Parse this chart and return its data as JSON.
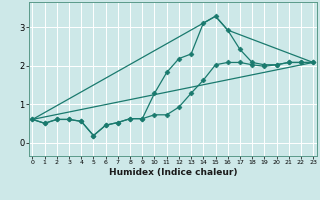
{
  "title": "",
  "xlabel": "Humidex (Indice chaleur)",
  "ylabel": "",
  "bg_color": "#cde8e8",
  "grid_color": "#ffffff",
  "line_color": "#1a7a6e",
  "marker": "D",
  "markersize": 2.5,
  "linewidth": 0.9,
  "series": [
    {
      "x": [
        0,
        1,
        2,
        3,
        4,
        5,
        6,
        7,
        8,
        9,
        10,
        11,
        12,
        13,
        14,
        15,
        16,
        17,
        18,
        19,
        20,
        21,
        22,
        23
      ],
      "y": [
        0.6,
        0.5,
        0.6,
        0.6,
        0.55,
        0.18,
        0.45,
        0.52,
        0.62,
        0.62,
        1.28,
        1.82,
        2.18,
        2.3,
        3.1,
        3.28,
        2.92,
        2.42,
        2.08,
        2.02,
        2.02,
        2.08,
        2.08,
        2.08
      ],
      "has_markers": true
    },
    {
      "x": [
        0,
        1,
        2,
        3,
        4,
        5,
        6,
        7,
        8,
        9,
        10,
        11,
        12,
        13,
        14,
        15,
        16,
        17,
        18,
        19,
        20,
        21,
        22,
        23
      ],
      "y": [
        0.6,
        0.5,
        0.6,
        0.6,
        0.55,
        0.18,
        0.45,
        0.52,
        0.62,
        0.62,
        0.72,
        0.72,
        0.92,
        1.28,
        1.62,
        2.02,
        2.08,
        2.08,
        2.02,
        1.98,
        2.02,
        2.08,
        2.08,
        2.08
      ],
      "has_markers": true
    },
    {
      "x": [
        0,
        23
      ],
      "y": [
        0.6,
        2.08
      ],
      "has_markers": false
    },
    {
      "x": [
        0,
        15,
        16,
        23
      ],
      "y": [
        0.6,
        3.28,
        2.92,
        2.08
      ],
      "has_markers": false
    }
  ],
  "xlim": [
    -0.3,
    23.3
  ],
  "ylim": [
    -0.35,
    3.65
  ],
  "yticks": [
    0,
    1,
    2,
    3
  ],
  "xticks": [
    0,
    1,
    2,
    3,
    4,
    5,
    6,
    7,
    8,
    9,
    10,
    11,
    12,
    13,
    14,
    15,
    16,
    17,
    18,
    19,
    20,
    21,
    22,
    23
  ]
}
